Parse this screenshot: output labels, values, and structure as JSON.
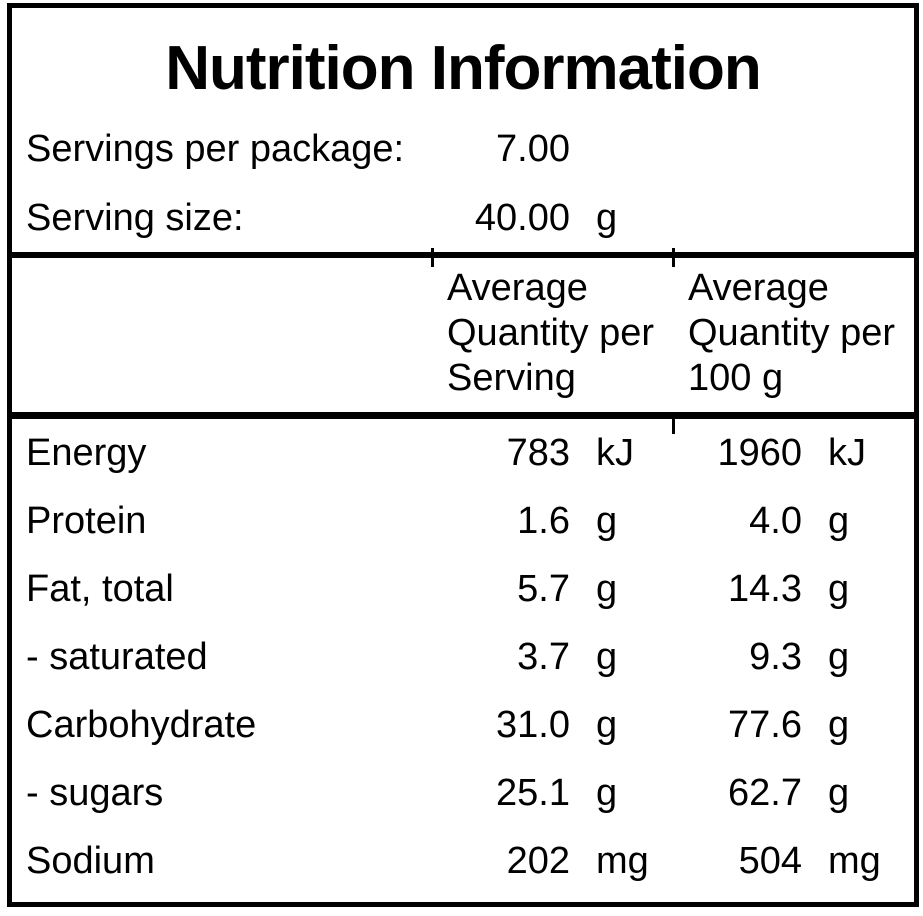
{
  "label": {
    "title": "Nutrition Information",
    "servings": [
      {
        "name": "Servings per package:",
        "value": "7.00",
        "unit": ""
      },
      {
        "name": "Serving size:",
        "value": "40.00",
        "unit": "g"
      }
    ],
    "column_headers": [
      "Average Quantity per Serving",
      "Average Quantity per 100 g"
    ],
    "rows": [
      {
        "nutrient": "Energy",
        "per_serving": "783",
        "per_serving_unit": "kJ",
        "per_100g": "1960",
        "per_100g_unit": "kJ"
      },
      {
        "nutrient": "Protein",
        "per_serving": "1.6",
        "per_serving_unit": "g",
        "per_100g": "4.0",
        "per_100g_unit": "g"
      },
      {
        "nutrient": "Fat, total",
        "per_serving": "5.7",
        "per_serving_unit": "g",
        "per_100g": "14.3",
        "per_100g_unit": "g"
      },
      {
        "nutrient": "- saturated",
        "per_serving": "3.7",
        "per_serving_unit": "g",
        "per_100g": "9.3",
        "per_100g_unit": "g"
      },
      {
        "nutrient": "Carbohydrate",
        "per_serving": "31.0",
        "per_serving_unit": "g",
        "per_100g": "77.6",
        "per_100g_unit": "g"
      },
      {
        "nutrient": "- sugars",
        "per_serving": "25.1",
        "per_serving_unit": "g",
        "per_100g": "62.7",
        "per_100g_unit": "g"
      },
      {
        "nutrient": "Sodium",
        "per_serving": "202",
        "per_serving_unit": "mg",
        "per_100g": "504",
        "per_100g_unit": "mg"
      }
    ],
    "colors": {
      "border": "#000000",
      "text": "#000000",
      "background": "#ffffff"
    }
  }
}
